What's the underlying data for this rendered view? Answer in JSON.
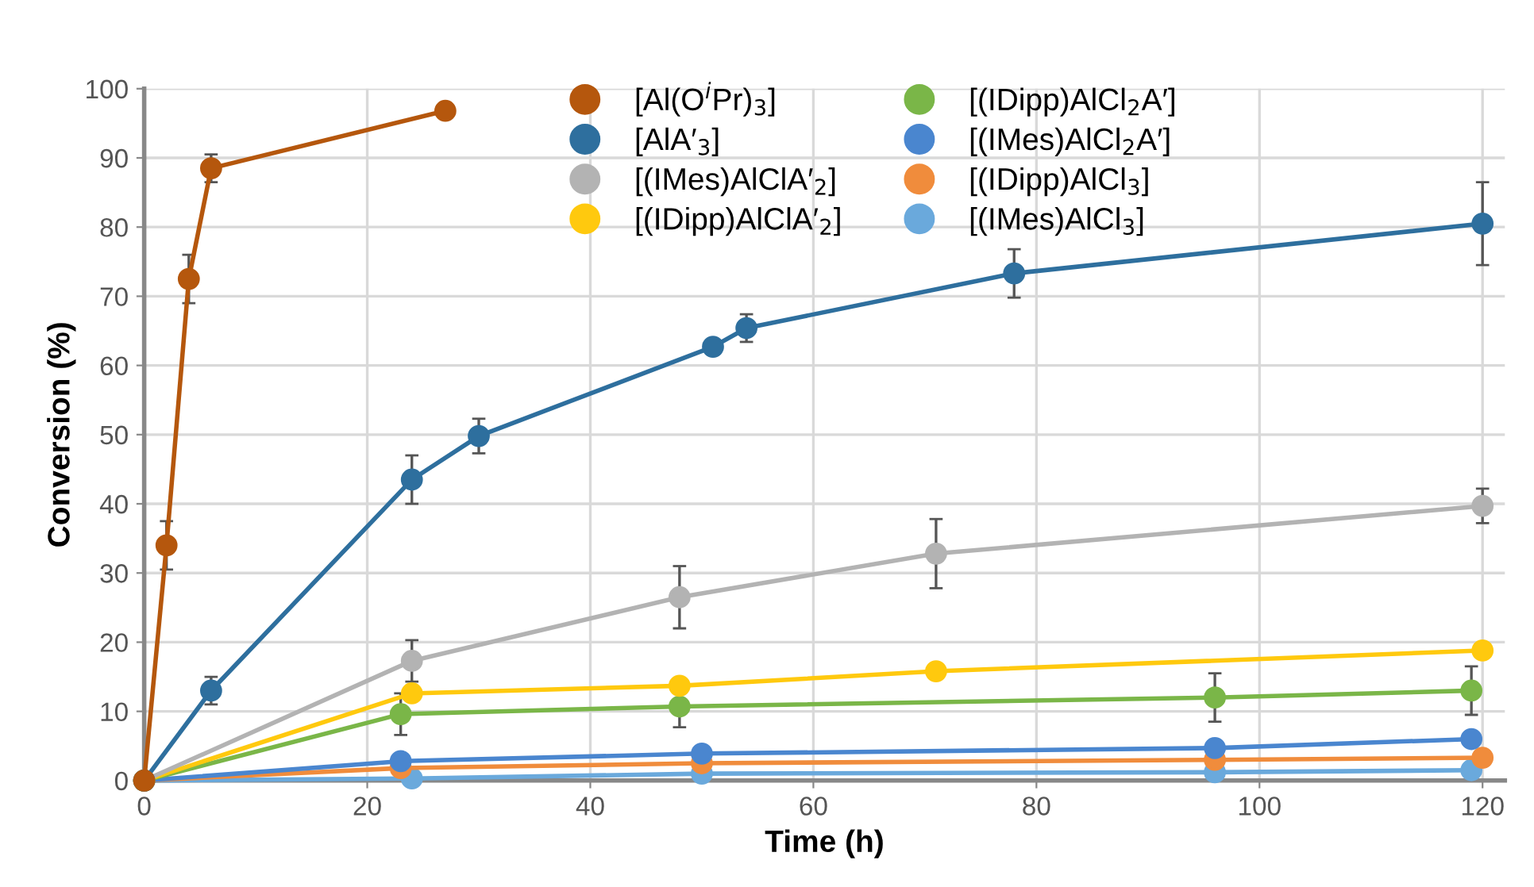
{
  "chart_data": {
    "type": "line",
    "xlabel": "Time (h)",
    "ylabel": "Conversion (%)",
    "xlim": [
      0,
      122
    ],
    "ylim": [
      0,
      100
    ],
    "xticks": [
      0,
      20,
      40,
      60,
      80,
      100,
      120
    ],
    "yticks": [
      0,
      10,
      20,
      30,
      40,
      50,
      60,
      70,
      80,
      90,
      100
    ],
    "grid": true,
    "legend": "top",
    "marker": "circle",
    "line_style": "solid",
    "series": [
      {
        "name": "[Al(O$^{i}$Pr)$_{3}$]",
        "color": "#b5570d",
        "x": [
          0,
          2,
          4,
          6,
          27
        ],
        "values": [
          0,
          34,
          72.5,
          88.5,
          96.8
        ],
        "errors": [
          null,
          3.5,
          3.5,
          2,
          null
        ]
      },
      {
        "name": "[AlA′$_{3}$]",
        "color": "#2e6f9e",
        "x": [
          0,
          6,
          24,
          30,
          51,
          54,
          78,
          120
        ],
        "values": [
          0,
          13,
          43.5,
          49.8,
          62.7,
          65.4,
          73.3,
          80.5
        ],
        "errors": [
          null,
          2,
          3.5,
          2.5,
          null,
          2,
          3.5,
          6
        ]
      },
      {
        "name": "[(IMes)AlClA′$_{2}$]",
        "color": "#b3b3b3",
        "x": [
          0,
          24,
          48,
          71,
          120
        ],
        "values": [
          0,
          17.3,
          26.5,
          32.8,
          39.7
        ],
        "errors": [
          null,
          3,
          4.5,
          5,
          2.5
        ]
      },
      {
        "name": "[(IDipp)AlClA′$_{2}$]",
        "color": "#ffc90e",
        "x": [
          0,
          24,
          48,
          71,
          120
        ],
        "values": [
          0,
          12.6,
          13.7,
          15.8,
          18.8
        ],
        "errors": [
          null,
          null,
          null,
          null,
          null
        ]
      },
      {
        "name": "[(IDipp)AlCl$_{2}$A′]",
        "color": "#7ab648",
        "x": [
          0,
          23,
          48,
          96,
          119
        ],
        "values": [
          0,
          9.6,
          10.7,
          12,
          13
        ],
        "errors": [
          null,
          3,
          3,
          3.5,
          3.5
        ]
      },
      {
        "name": "[(IMes)AlCl$_{2}$A′]",
        "color": "#4a86cf",
        "x": [
          0,
          23,
          50,
          96,
          119
        ],
        "values": [
          0,
          2.8,
          3.9,
          4.7,
          6.0
        ],
        "errors": [
          null,
          null,
          null,
          null,
          null
        ]
      },
      {
        "name": "[(IDipp)AlCl$_{3}$]",
        "color": "#f08c3c",
        "x": [
          0,
          23,
          50,
          96,
          120
        ],
        "values": [
          0,
          1.8,
          2.5,
          3.0,
          3.3
        ],
        "errors": [
          null,
          null,
          null,
          null,
          null
        ]
      },
      {
        "name": "[(IMes)AlCl$_{3}$]",
        "color": "#6aa9dc",
        "x": [
          0,
          24,
          50,
          96,
          119
        ],
        "values": [
          0,
          0.3,
          1.0,
          1.2,
          1.5
        ],
        "errors": [
          null,
          null,
          null,
          null,
          null
        ]
      }
    ]
  }
}
